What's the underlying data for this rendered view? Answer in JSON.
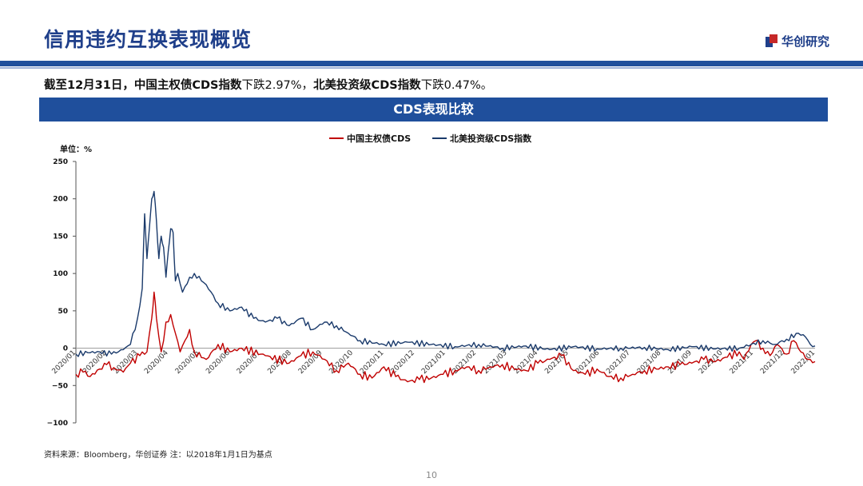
{
  "header": {
    "title": "信用违约互换表现概览",
    "logo_text": "华创研究",
    "accent_color": "#1f4f9c",
    "brand_red": "#c62828"
  },
  "summary": {
    "prefix": "截至12月31日，",
    "item1_name": "中国主权债CDS指数",
    "item1_text": "下跌2.97%，",
    "item2_name": "北美投资级CDS指数",
    "item2_text": "下跌0.47%。"
  },
  "banner": {
    "title": "CDS表现比较"
  },
  "chart_data": {
    "type": "line",
    "unit_label": "单位：%",
    "ylim": [
      -100,
      250
    ],
    "yticks": [
      -100,
      -50,
      0,
      50,
      100,
      150,
      200,
      250
    ],
    "x_tick_labels": [
      "2020/01",
      "2020/02",
      "2020/03",
      "2020/04",
      "2020/05",
      "2020/06",
      "2020/07",
      "2020/08",
      "2020/09",
      "2020/10",
      "2020/11",
      "2020/12",
      "2021/01",
      "2021/02",
      "2021/03",
      "2021/04",
      "2021/05",
      "2021/06",
      "2021/07",
      "2021/08",
      "2021/09",
      "2021/10",
      "2021/11",
      "2021/12",
      "2022/01"
    ],
    "legend_position": "top-center",
    "series": [
      {
        "name": "中国主权债CDS",
        "color": "#c00000",
        "points": [
          [
            2020.0,
            -35
          ],
          [
            2020.03,
            -32
          ],
          [
            2020.06,
            -38
          ],
          [
            2020.1,
            -28
          ],
          [
            2020.13,
            -22
          ],
          [
            2020.16,
            -26
          ],
          [
            2020.2,
            -32
          ],
          [
            2020.23,
            -20
          ],
          [
            2020.27,
            -10
          ],
          [
            2020.3,
            -5
          ],
          [
            2020.32,
            40
          ],
          [
            2020.33,
            75
          ],
          [
            2020.34,
            40
          ],
          [
            2020.36,
            -5
          ],
          [
            2020.38,
            35
          ],
          [
            2020.4,
            45
          ],
          [
            2020.42,
            20
          ],
          [
            2020.44,
            -5
          ],
          [
            2020.46,
            10
          ],
          [
            2020.48,
            25
          ],
          [
            2020.5,
            -5
          ],
          [
            2020.55,
            -15
          ],
          [
            2020.6,
            5
          ],
          [
            2020.65,
            -5
          ],
          [
            2020.7,
            0
          ],
          [
            2020.8,
            -10
          ],
          [
            2020.9,
            -20
          ],
          [
            2020.95,
            -10
          ],
          [
            2021.0,
            -5
          ],
          [
            2021.05,
            -15
          ],
          [
            2021.1,
            -30
          ],
          [
            2021.15,
            -20
          ],
          [
            2021.2,
            -35
          ],
          [
            2021.25,
            -40
          ],
          [
            2021.3,
            -25
          ],
          [
            2021.35,
            -38
          ],
          [
            2021.4,
            -45
          ],
          [
            2021.45,
            -42
          ],
          [
            2021.5,
            -40
          ],
          [
            2021.55,
            -35
          ],
          [
            2021.6,
            -30
          ],
          [
            2021.65,
            -25
          ],
          [
            2021.7,
            -30
          ],
          [
            2021.75,
            -25
          ],
          [
            2021.8,
            -22
          ],
          [
            2021.85,
            -28
          ],
          [
            2021.9,
            -30
          ],
          [
            2021.95,
            -20
          ],
          [
            2022.0,
            -15
          ],
          [
            2022.05,
            -10
          ],
          [
            2022.1,
            -30
          ],
          [
            2022.15,
            -35
          ],
          [
            2022.2,
            -28
          ],
          [
            2022.25,
            -38
          ],
          [
            2022.3,
            -40
          ],
          [
            2022.35,
            -35
          ],
          [
            2022.4,
            -30
          ],
          [
            2022.45,
            -28
          ],
          [
            2022.5,
            -25
          ],
          [
            2022.55,
            -22
          ],
          [
            2022.6,
            -20
          ],
          [
            2022.65,
            -15
          ],
          [
            2022.7,
            -18
          ],
          [
            2022.75,
            -12
          ],
          [
            2022.8,
            -5
          ],
          [
            2022.82,
            -15
          ],
          [
            2022.85,
            5
          ],
          [
            2022.87,
            10
          ],
          [
            2022.9,
            0
          ],
          [
            2022.93,
            -10
          ],
          [
            2022.96,
            5
          ],
          [
            2023.0,
            -8
          ],
          [
            2023.03,
            10
          ],
          [
            2023.06,
            -5
          ],
          [
            2023.09,
            -15
          ],
          [
            2023.12,
            -18
          ]
        ]
      },
      {
        "name": "北美投资级CDS指数",
        "color": "#1a3a6b",
        "points": [
          [
            2020.0,
            -8
          ],
          [
            2020.05,
            -6
          ],
          [
            2020.1,
            -5
          ],
          [
            2020.15,
            -8
          ],
          [
            2020.2,
            -2
          ],
          [
            2020.23,
            5
          ],
          [
            2020.26,
            40
          ],
          [
            2020.28,
            80
          ],
          [
            2020.29,
            180
          ],
          [
            2020.3,
            120
          ],
          [
            2020.31,
            160
          ],
          [
            2020.32,
            200
          ],
          [
            2020.33,
            210
          ],
          [
            2020.34,
            170
          ],
          [
            2020.35,
            120
          ],
          [
            2020.36,
            150
          ],
          [
            2020.37,
            135
          ],
          [
            2020.38,
            95
          ],
          [
            2020.39,
            130
          ],
          [
            2020.4,
            160
          ],
          [
            2020.41,
            155
          ],
          [
            2020.42,
            90
          ],
          [
            2020.43,
            100
          ],
          [
            2020.45,
            75
          ],
          [
            2020.48,
            95
          ],
          [
            2020.5,
            100
          ],
          [
            2020.55,
            85
          ],
          [
            2020.6,
            60
          ],
          [
            2020.65,
            50
          ],
          [
            2020.7,
            55
          ],
          [
            2020.75,
            40
          ],
          [
            2020.8,
            35
          ],
          [
            2020.85,
            40
          ],
          [
            2020.9,
            30
          ],
          [
            2020.95,
            40
          ],
          [
            2021.0,
            25
          ],
          [
            2021.05,
            35
          ],
          [
            2021.1,
            30
          ],
          [
            2021.15,
            20
          ],
          [
            2021.2,
            10
          ],
          [
            2021.3,
            5
          ],
          [
            2021.4,
            8
          ],
          [
            2021.5,
            5
          ],
          [
            2021.6,
            2
          ],
          [
            2021.7,
            5
          ],
          [
            2021.8,
            0
          ],
          [
            2021.9,
            3
          ],
          [
            2022.0,
            -2
          ],
          [
            2022.1,
            2
          ],
          [
            2022.2,
            -1
          ],
          [
            2022.3,
            0
          ],
          [
            2022.4,
            1
          ],
          [
            2022.5,
            -2
          ],
          [
            2022.6,
            2
          ],
          [
            2022.7,
            -1
          ],
          [
            2022.8,
            0
          ],
          [
            2022.85,
            5
          ],
          [
            2022.9,
            10
          ],
          [
            2022.95,
            5
          ],
          [
            2023.0,
            12
          ],
          [
            2023.05,
            20
          ],
          [
            2023.08,
            15
          ],
          [
            2023.1,
            5
          ],
          [
            2023.12,
            3
          ]
        ]
      }
    ]
  },
  "footer": {
    "source": "资料来源：Bloomberg，华创证券  注：以2018年1月1日为基点",
    "disclaimer": "",
    "page_number": "10"
  }
}
